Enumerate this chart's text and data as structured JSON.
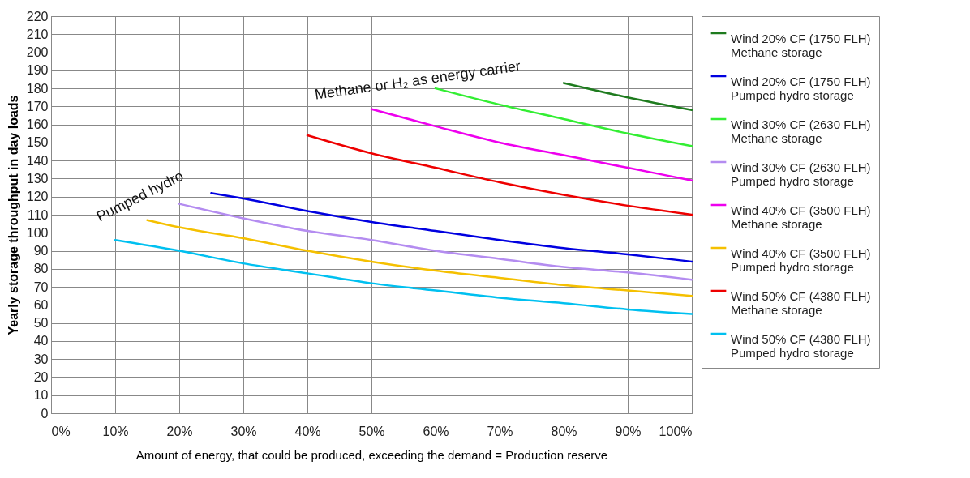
{
  "chart_data": {
    "type": "line",
    "xlabel": "Amount of energy, that could be produced, exceeding the demand = Production reserve",
    "ylabel": "Yearly storage throughput in day loads",
    "xlim": [
      0,
      100
    ],
    "xticks": [
      {
        "value": 0,
        "label": "0%"
      },
      {
        "value": 10,
        "label": "10%"
      },
      {
        "value": 20,
        "label": "20%"
      },
      {
        "value": 30,
        "label": "30%"
      },
      {
        "value": 40,
        "label": "40%"
      },
      {
        "value": 50,
        "label": "50%"
      },
      {
        "value": 60,
        "label": "60%"
      },
      {
        "value": 70,
        "label": "70%"
      },
      {
        "value": 80,
        "label": "80%"
      },
      {
        "value": 90,
        "label": "90%"
      },
      {
        "value": 100,
        "label": "100%"
      }
    ],
    "ylim": [
      0,
      220
    ],
    "yticks": [
      0,
      10,
      20,
      30,
      40,
      50,
      60,
      70,
      80,
      90,
      100,
      110,
      120,
      130,
      140,
      150,
      160,
      170,
      180,
      190,
      200,
      210,
      220
    ],
    "grid": true,
    "legend": "right",
    "marker": "none",
    "line_style": "solid",
    "annotations": [
      "Pumped hydro",
      "Methane or H₂ as energy carrier"
    ],
    "series": [
      {
        "name": "Wind 20% CF (1750 FLH)\nMethane storage",
        "color": "#1e7b1e",
        "x": [
          80,
          90,
          100
        ],
        "values": [
          183,
          175,
          168
        ]
      },
      {
        "name": "Wind 20% CF (1750 FLH)\nPumped hydro storage",
        "color": "#0000e0",
        "x": [
          25,
          30,
          40,
          50,
          60,
          70,
          80,
          90,
          100
        ],
        "values": [
          122,
          119,
          112,
          106,
          101,
          96,
          91.5,
          88,
          84
        ]
      },
      {
        "name": "Wind 30% CF (2630 FLH)\nMethane storage",
        "color": "#33ee33",
        "x": [
          60,
          70,
          80,
          90,
          100
        ],
        "values": [
          180,
          171,
          163,
          155,
          148
        ]
      },
      {
        "name": "Wind 30% CF (2630 FLH)\nPumped hydro storage",
        "color": "#b48cf0",
        "x": [
          20,
          30,
          40,
          50,
          60,
          70,
          80,
          90,
          100
        ],
        "values": [
          116,
          108,
          101,
          96,
          90,
          85.5,
          81,
          78,
          74
        ]
      },
      {
        "name": "Wind 40% CF (3500 FLH)\nMethane storage",
        "color": "#ee00ee",
        "x": [
          50,
          60,
          70,
          80,
          90,
          100
        ],
        "values": [
          168.5,
          159,
          150,
          143,
          136,
          129
        ]
      },
      {
        "name": "Wind 40% CF (3500 FLH)\nPumped hydro storage",
        "color": "#f5c000",
        "x": [
          15,
          20,
          30,
          40,
          50,
          60,
          70,
          80,
          90,
          100
        ],
        "values": [
          107,
          103,
          97,
          90,
          84,
          79,
          75,
          71,
          68,
          65
        ]
      },
      {
        "name": "Wind 50% CF (4380 FLH)\nMethane storage",
        "color": "#ee0000",
        "x": [
          40,
          50,
          60,
          70,
          80,
          90,
          100
        ],
        "values": [
          154,
          144,
          136,
          128,
          121,
          115,
          110
        ]
      },
      {
        "name": "Wind 50% CF (4380 FLH)\nPumped hydro storage",
        "color": "#00c0f0",
        "x": [
          10,
          20,
          30,
          40,
          50,
          60,
          70,
          80,
          90,
          100
        ],
        "values": [
          96,
          90,
          83,
          77.5,
          72,
          68,
          64,
          61,
          57.5,
          55
        ]
      }
    ]
  }
}
